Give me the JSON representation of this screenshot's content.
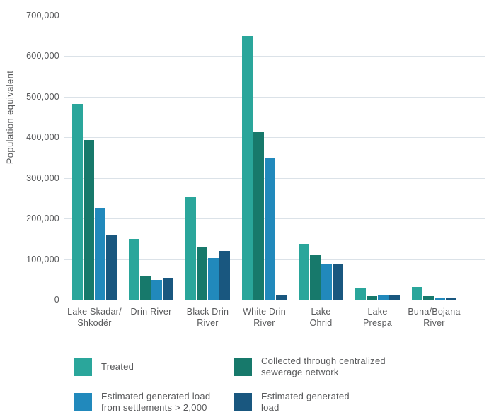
{
  "colors": {
    "background": "#ffffff",
    "text": "#58595b",
    "grid": "#dbe2e8",
    "axis": "#c5cfd8"
  },
  "chart_data": {
    "type": "bar",
    "title": "",
    "ylabel": "Population equivalent",
    "xlabel": "",
    "ylim": [
      0,
      700000
    ],
    "ytick_interval": 100000,
    "ytick_labels": [
      "0",
      "100,000",
      "200,000",
      "300,000",
      "400,000",
      "500,000",
      "600,000",
      "700,000"
    ],
    "grid": true,
    "legend_position": "bottom",
    "categories": [
      [
        "Lake Skadar/",
        "Shkodër"
      ],
      [
        "Drin River"
      ],
      [
        "Black Drin",
        "River"
      ],
      [
        "White Drin",
        "River"
      ],
      [
        "Lake",
        "Ohrid"
      ],
      [
        "Lake",
        "Prespa"
      ],
      [
        "Buna/Bojana",
        "River"
      ]
    ],
    "series": [
      {
        "name": "Treated",
        "color": "#2aa69b",
        "values": [
          483000,
          150000,
          252000,
          650000,
          137000,
          28000,
          31000
        ]
      },
      {
        "name": "Collected through centralized sewerage network",
        "color": "#17796b",
        "values": [
          394000,
          60000,
          130000,
          413000,
          110000,
          9000,
          8000
        ]
      },
      {
        "name": "Estimated generated load from settlements > 2,000",
        "color": "#2189bc",
        "values": [
          226000,
          48000,
          102000,
          350000,
          87000,
          10000,
          5000
        ]
      },
      {
        "name": "Estimated generated load",
        "color": "#19577f",
        "values": [
          158000,
          52000,
          120000,
          10000,
          87000,
          13000,
          6000
        ]
      }
    ]
  }
}
